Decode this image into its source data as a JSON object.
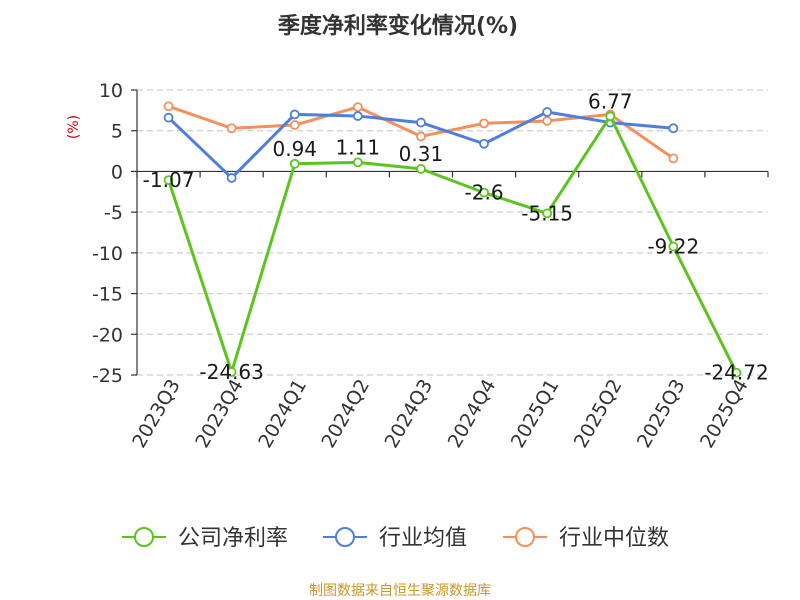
{
  "chart_data": {
    "type": "line",
    "title": "季度净利率变化情况(%)",
    "ylabel": "(%)",
    "xlabel": "",
    "categories": [
      "2023Q3",
      "2023Q4",
      "2024Q1",
      "2024Q2",
      "2024Q3",
      "2024Q4",
      "2025Q1",
      "2025Q2",
      "2025Q3",
      "2025Q4"
    ],
    "ylim": [
      -25,
      10
    ],
    "yticks": [
      10,
      5,
      0,
      -5,
      -10,
      -15,
      -20,
      -25
    ],
    "grid": true,
    "legend_position": "bottom",
    "series": [
      {
        "name": "公司净利率",
        "color": "#5cc41f",
        "values": [
          -1.07,
          -24.63,
          0.94,
          1.11,
          0.31,
          -2.6,
          -5.15,
          6.77,
          -9.22,
          -24.72
        ],
        "labels": [
          "-1.07",
          "-24.63",
          "0.94",
          "1.11",
          "0.31",
          "-2.6",
          "-5.15",
          "6.77",
          "-9.22",
          "-24.72"
        ]
      },
      {
        "name": "行业均值",
        "color": "#4f7fdb",
        "values": [
          6.6,
          -0.8,
          7.0,
          6.8,
          6.0,
          3.4,
          7.3,
          6.0,
          5.3,
          null
        ]
      },
      {
        "name": "行业中位数",
        "color": "#f58f5b",
        "values": [
          8.0,
          5.3,
          5.7,
          7.9,
          4.3,
          5.9,
          6.2,
          7.0,
          1.6,
          null
        ]
      }
    ]
  },
  "source": "制图数据来自恒生聚源数据库"
}
